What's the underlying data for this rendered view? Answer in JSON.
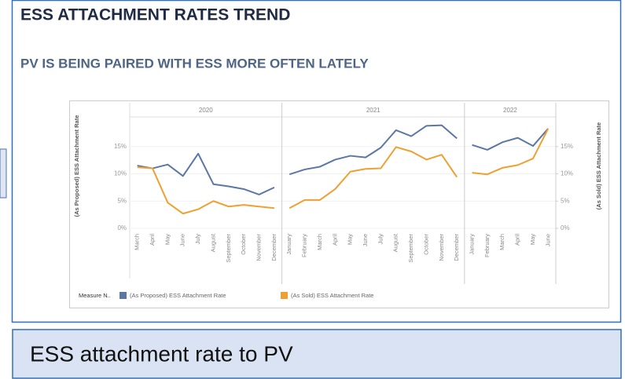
{
  "header": {
    "title": "ESS ATTACHMENT RATES TREND",
    "subtitle": "PV IS BEING PAIRED WITH ESS MORE OFTEN LATELY"
  },
  "caption": "ESS attachment rate to PV",
  "chart_data": {
    "type": "line",
    "y_label": "(As Proposed) ESS Attachment Rate",
    "y2_label": "(As Sold) ESS Attachment Rate",
    "legend_title": "Measure N..",
    "panels": [
      {
        "title": "2020",
        "categories": [
          "March",
          "April",
          "May",
          "June",
          "July",
          "August",
          "September",
          "October",
          "November",
          "December"
        ]
      },
      {
        "title": "2021",
        "categories": [
          "January",
          "February",
          "March",
          "April",
          "May",
          "June",
          "July",
          "August",
          "September",
          "October",
          "November",
          "December"
        ]
      },
      {
        "title": "2022",
        "categories": [
          "January",
          "February",
          "March",
          "April",
          "May",
          "June"
        ]
      }
    ],
    "series": [
      {
        "name": "(As Proposed) ESS Attachment Rate",
        "color": "#5b77a3",
        "values": [
          11.5,
          11.0,
          11.7,
          9.6,
          13.7,
          8.1,
          7.7,
          7.2,
          6.2,
          7.5,
          9.9,
          10.8,
          11.3,
          12.6,
          13.3,
          13.0,
          14.8,
          18.0,
          16.9,
          18.8,
          18.9,
          16.5,
          15.3,
          14.4,
          15.8,
          16.6,
          15.1,
          18.3
        ]
      },
      {
        "name": "(As Sold) ESS Attachment Rate",
        "color": "#f0a030",
        "axis": "y2",
        "values": [
          11.2,
          11.0,
          4.7,
          2.7,
          3.5,
          5.0,
          4.0,
          4.3,
          4.0,
          3.7,
          3.7,
          5.2,
          5.2,
          7.2,
          10.4,
          10.9,
          11.0,
          14.9,
          14.1,
          12.6,
          13.5,
          9.4,
          10.2,
          9.9,
          11.1,
          11.6,
          12.8,
          18.3
        ]
      }
    ],
    "ylim": [
      0,
      20
    ],
    "yticks": [
      {
        "value": 0,
        "label": "0%"
      },
      {
        "value": 5,
        "label": "5%"
      },
      {
        "value": 10,
        "label": "10%"
      },
      {
        "value": 15,
        "label": "15%"
      }
    ],
    "y2lim": [
      0,
      20
    ],
    "y2ticks": [
      {
        "value": 0,
        "label": "0%"
      },
      {
        "value": 5,
        "label": "5%"
      },
      {
        "value": 10,
        "label": "10%"
      },
      {
        "value": 15,
        "label": "15%"
      }
    ]
  }
}
